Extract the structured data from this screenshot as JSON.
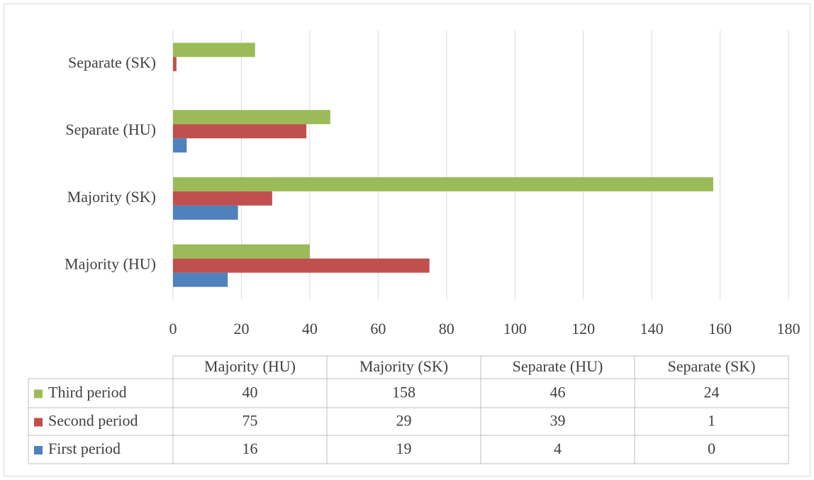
{
  "chart_data": {
    "type": "bar",
    "orientation": "horizontal",
    "categories": [
      "Majority (HU)",
      "Majority (SK)",
      "Separate (HU)",
      "Separate (SK)"
    ],
    "series": [
      {
        "name": "Third period",
        "color": "#9bbb59",
        "values": [
          40,
          158,
          46,
          24
        ]
      },
      {
        "name": "Second period",
        "color": "#c0504d",
        "values": [
          75,
          29,
          39,
          1
        ]
      },
      {
        "name": "First period",
        "color": "#4f81bd",
        "values": [
          16,
          19,
          4,
          0
        ]
      }
    ],
    "xlim": [
      0,
      180
    ],
    "xticks": [
      0,
      20,
      40,
      60,
      80,
      100,
      120,
      140,
      160,
      180
    ],
    "grid": true,
    "data_table": true
  }
}
